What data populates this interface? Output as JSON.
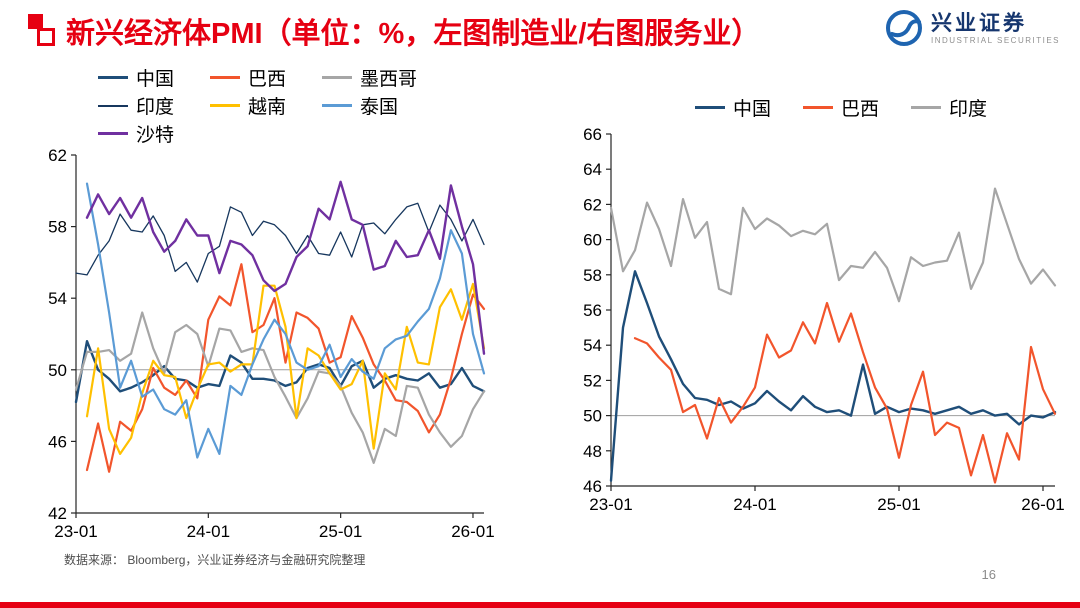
{
  "header": {
    "title": "新兴经济体PMI（单位：%，左图制造业/右图服务业）",
    "logo": {
      "name": "兴业证券",
      "subtitle": "INDUSTRIAL SECURITIES"
    }
  },
  "footer": {
    "source": "数据来源： Bloomberg，兴业证券经济与金融研究院整理",
    "page_number": "16"
  },
  "colors": {
    "title_red": "#e60012",
    "bottom_bar_red": "#e60012",
    "logo_blue": "#1e64b0",
    "gridline_gray": "#9e9e9e",
    "axis_black": "#262626"
  },
  "chart_data": [
    {
      "type": "line",
      "title": "新兴经济体制造业PMI（左图）",
      "frequency": "monthly",
      "x_start": "2023-01",
      "n_points": 38,
      "x_tick_labels": [
        "23-01",
        "24-01",
        "25-01",
        "26-01"
      ],
      "x_tick_positions": [
        0,
        12,
        24,
        36
      ],
      "ylim": [
        42,
        62
      ],
      "ystep": 4,
      "gridline_at": 50,
      "legend_position": "top-left",
      "series": [
        {
          "name": "中国",
          "color": "#1f4e79",
          "width": 2.4,
          "values": [
            48.2,
            51.6,
            50.0,
            49.5,
            48.8,
            49.0,
            49.3,
            49.7,
            50.2,
            49.5,
            49.4,
            49.0,
            49.2,
            49.1,
            50.8,
            50.4,
            49.5,
            49.5,
            49.4,
            49.1,
            49.3,
            50.1,
            50.3,
            50.1,
            49.1,
            50.2,
            50.5,
            49.0,
            49.5,
            49.7,
            49.5,
            49.4,
            49.8,
            49.0,
            49.2,
            50.1,
            49.1,
            48.8
          ]
        },
        {
          "name": "巴西",
          "color": "#f2552c",
          "width": 2.2,
          "values": [
            null,
            44.4,
            47.0,
            44.3,
            47.1,
            46.6,
            47.8,
            50.1,
            49.0,
            48.6,
            49.4,
            48.4,
            52.8,
            54.1,
            53.6,
            55.9,
            52.1,
            52.5,
            54.0,
            50.4,
            53.2,
            52.9,
            52.3,
            50.4,
            50.7,
            53.0,
            51.8,
            50.3,
            49.4,
            48.3,
            48.2,
            47.7,
            46.5,
            47.5,
            49.5,
            52.0,
            54.2,
            53.4
          ]
        },
        {
          "name": "墨西哥",
          "color": "#a6a6a6",
          "width": 2.2,
          "values": [
            48.9,
            51.0,
            51.0,
            51.1,
            50.5,
            50.9,
            53.2,
            51.2,
            49.8,
            52.1,
            52.5,
            52.0,
            50.2,
            52.3,
            52.2,
            51.0,
            51.2,
            51.1,
            49.6,
            48.5,
            47.3,
            48.4,
            49.9,
            49.8,
            49.1,
            47.6,
            46.5,
            44.8,
            46.7,
            46.3,
            49.1,
            49.0,
            47.5,
            46.5,
            45.7,
            46.3,
            47.8,
            48.8
          ]
        },
        {
          "name": "印度",
          "color": "#17375e",
          "width": 1.3,
          "values": [
            55.4,
            55.3,
            56.4,
            57.2,
            58.7,
            57.8,
            57.7,
            58.6,
            57.5,
            55.5,
            56.0,
            54.9,
            56.5,
            56.9,
            59.1,
            58.8,
            57.5,
            58.3,
            58.1,
            57.5,
            56.5,
            57.5,
            56.5,
            56.4,
            57.7,
            56.3,
            58.1,
            58.2,
            57.6,
            58.4,
            59.1,
            59.3,
            57.7,
            59.2,
            58.4,
            57.2,
            58.4,
            57.0
          ]
        },
        {
          "name": "越南",
          "color": "#ffc000",
          "width": 2.2,
          "values": [
            null,
            47.4,
            51.2,
            46.7,
            45.3,
            46.2,
            48.7,
            50.5,
            49.7,
            49.6,
            47.3,
            48.9,
            50.3,
            50.4,
            49.9,
            50.3,
            50.3,
            54.7,
            54.7,
            52.4,
            47.3,
            51.2,
            50.8,
            49.8,
            48.9,
            49.2,
            50.5,
            45.6,
            49.8,
            48.9,
            52.4,
            50.4,
            50.3,
            53.5,
            54.5,
            52.8,
            54.8,
            51.2
          ]
        },
        {
          "name": "泰国",
          "color": "#5b9bd5",
          "width": 2.2,
          "values": [
            null,
            60.4,
            57.0,
            53.2,
            49.0,
            50.5,
            48.5,
            48.9,
            47.8,
            47.5,
            48.3,
            45.1,
            46.7,
            45.3,
            49.1,
            48.6,
            50.3,
            51.7,
            52.8,
            52.0,
            50.4,
            50.0,
            50.2,
            51.4,
            49.6,
            50.6,
            49.9,
            49.5,
            51.2,
            51.7,
            51.9,
            52.7,
            53.4,
            55.1,
            57.8,
            56.5,
            52.0,
            49.8
          ]
        },
        {
          "name": "沙特",
          "color": "#7030a0",
          "width": 2.4,
          "values": [
            null,
            58.5,
            59.8,
            58.7,
            59.6,
            58.5,
            59.6,
            57.7,
            56.6,
            57.2,
            58.4,
            57.5,
            57.5,
            55.4,
            57.2,
            57.0,
            56.4,
            55.0,
            54.4,
            54.8,
            56.3,
            56.9,
            59.0,
            58.4,
            60.5,
            58.4,
            58.1,
            55.6,
            55.8,
            57.2,
            56.3,
            56.4,
            57.8,
            56.2,
            60.3,
            58.0,
            55.9,
            50.9
          ]
        }
      ]
    },
    {
      "type": "line",
      "title": "新兴经济体服务业PMI（右图）",
      "frequency": "monthly",
      "x_start": "2023-01",
      "n_points": 38,
      "x_tick_labels": [
        "23-01",
        "24-01",
        "25-01",
        "26-01"
      ],
      "x_tick_positions": [
        0,
        12,
        24,
        36
      ],
      "ylim": [
        46,
        66
      ],
      "ystep": 2,
      "gridline_at": 50,
      "legend_position": "top-center",
      "series": [
        {
          "name": "中国",
          "color": "#1f4e79",
          "width": 2.4,
          "values": [
            46.3,
            55.0,
            58.2,
            56.4,
            54.5,
            53.2,
            51.8,
            51.0,
            50.9,
            50.6,
            50.8,
            50.4,
            50.7,
            51.4,
            50.8,
            50.3,
            51.1,
            50.5,
            50.2,
            50.3,
            50.0,
            52.9,
            50.1,
            50.5,
            50.2,
            50.4,
            50.3,
            50.1,
            50.3,
            50.5,
            50.1,
            50.3,
            50.0,
            50.1,
            49.5,
            50.0,
            49.9,
            50.2
          ]
        },
        {
          "name": "巴西",
          "color": "#f2552c",
          "width": 2.2,
          "values": [
            null,
            null,
            54.4,
            54.1,
            53.3,
            52.6,
            50.2,
            50.6,
            48.7,
            51.0,
            49.6,
            50.5,
            51.6,
            54.6,
            53.3,
            53.7,
            55.3,
            54.1,
            56.4,
            54.2,
            55.8,
            53.6,
            51.6,
            50.4,
            47.6,
            50.6,
            52.5,
            48.9,
            49.6,
            49.3,
            46.6,
            48.9,
            46.2,
            49.0,
            47.5,
            53.9,
            51.5,
            50.1
          ]
        },
        {
          "name": "印度",
          "color": "#a6a6a6",
          "width": 2.2,
          "values": [
            61.8,
            58.2,
            59.4,
            62.1,
            60.6,
            58.5,
            62.3,
            60.1,
            61.0,
            57.2,
            56.9,
            61.8,
            60.6,
            61.2,
            60.8,
            60.2,
            60.5,
            60.3,
            60.9,
            57.7,
            58.5,
            58.4,
            59.3,
            58.4,
            56.5,
            59.0,
            58.5,
            58.7,
            58.8,
            60.4,
            57.2,
            58.7,
            62.9,
            60.9,
            58.9,
            57.5,
            58.3,
            57.4
          ]
        }
      ]
    }
  ]
}
